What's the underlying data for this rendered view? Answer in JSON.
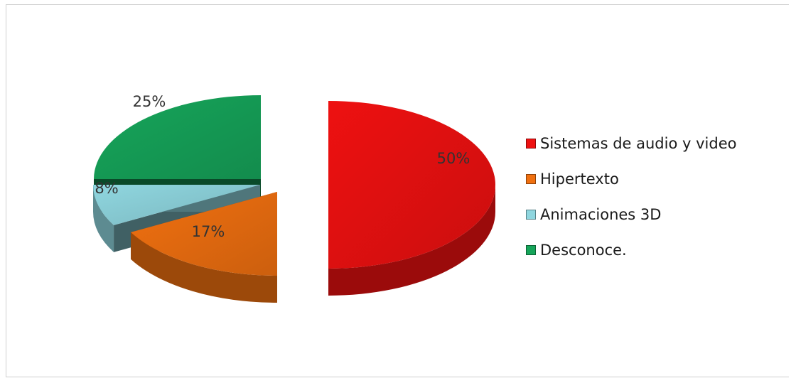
{
  "chart_data": {
    "type": "pie",
    "title": "",
    "categories": [
      "Sistemas de audio y video",
      "Hipertexto",
      "Animaciones 3D",
      "Desconoce."
    ],
    "values": [
      50,
      17,
      8,
      25
    ],
    "labels": [
      "50%",
      "17%",
      "8%",
      "25%"
    ],
    "colors": [
      "#ee1111",
      "#f07010",
      "#8fd6df",
      "#16a55a"
    ],
    "legend_position": "right",
    "style": "3d-exploded"
  }
}
